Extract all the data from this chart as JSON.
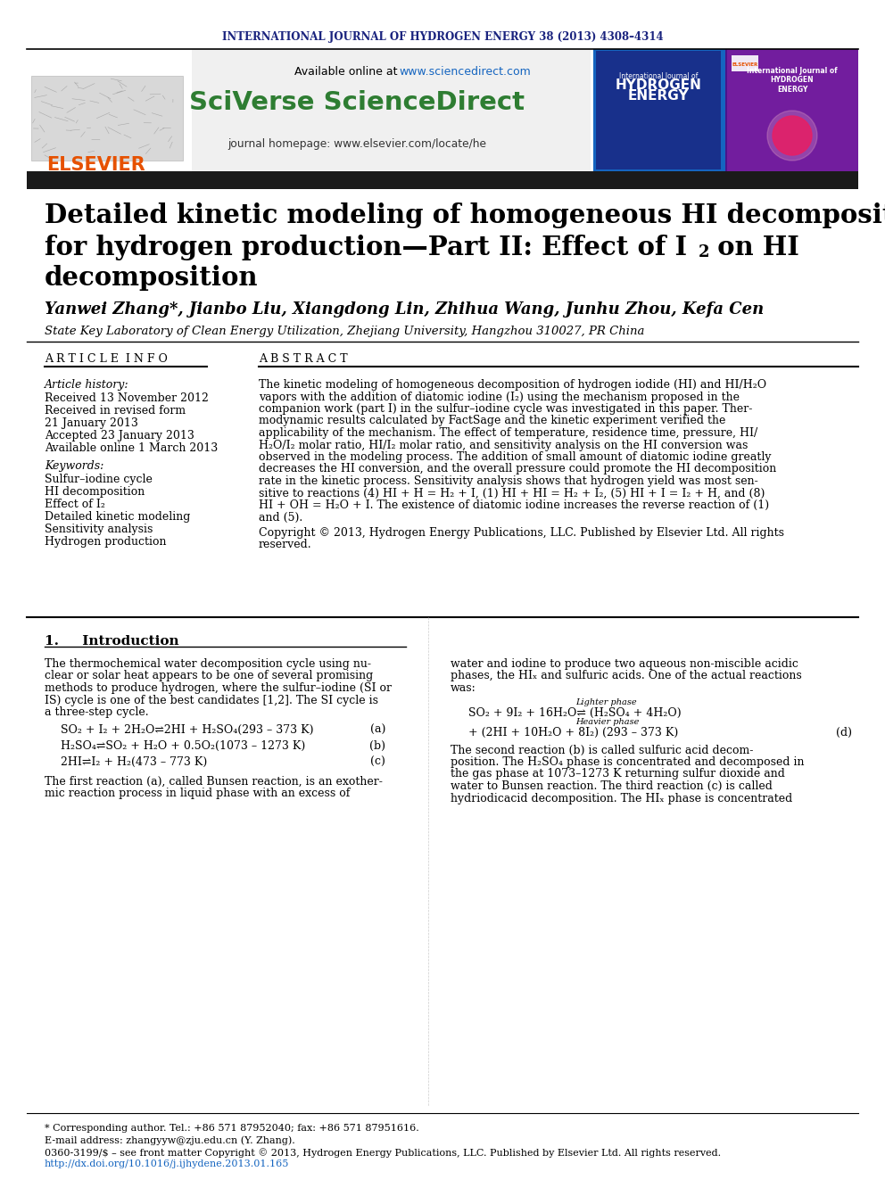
{
  "journal_header": "INTERNATIONAL JOURNAL OF HYDROGEN ENERGY 38 (2013) 4308–4314",
  "available_online": "Available online at ",
  "url_sciencedirect": "www.sciencedirect.com",
  "sciverse_text": "SciVerse ScienceDirect",
  "journal_homepage": "journal homepage: www.elsevier.com/locate/he",
  "elsevier_text": "ELSEVIER",
  "title_line1": "Detailed kinetic modeling of homogeneous HI decomposition",
  "title_line2": "for hydrogen production—Part II: Effect of I",
  "title_line2_sub": "2",
  "title_line2_end": " on HI",
  "title_line3": "decomposition",
  "authors": "Yanwei Zhang*, Jianbo Liu, Xiangdong Lin, Zhihua Wang, Junhu Zhou, Kefa Cen",
  "affiliation": "State Key Laboratory of Clean Energy Utilization, Zhejiang University, Hangzhou 310027, PR China",
  "article_info_label": "A R T I C L E  I N F O",
  "abstract_label": "A B S T R A C T",
  "article_history_label": "Article history:",
  "received1": "Received 13 November 2012",
  "received_revised_label": "Received in revised form",
  "received_revised_date": "21 January 2013",
  "accepted": "Accepted 23 January 2013",
  "available_online2": "Available online 1 March 2013",
  "keywords_label": "Keywords:",
  "keywords": [
    "Sulfur–iodine cycle",
    "HI decomposition",
    "Effect of I₂",
    "Detailed kinetic modeling",
    "Sensitivity analysis",
    "Hydrogen production"
  ],
  "abstract_text": "The kinetic modeling of homogeneous decomposition of hydrogen iodide (HI) and HI/H₂O\nvapors with the addition of diatomic iodine (I₂) using the mechanism proposed in the\ncompanion work (part I) in the sulfur–iodine cycle was investigated in this paper. Ther-\nmodynamic results calculated by FactSage and the kinetic experiment verified the\napplicability of the mechanism. The effect of temperature, residence time, pressure, HI/\nH₂O/I₂ molar ratio, HI/I₂ molar ratio, and sensitivity analysis on the HI conversion was\nobserved in the modeling process. The addition of small amount of diatomic iodine greatly\ndecreases the HI conversion, and the overall pressure could promote the HI decomposition\nrate in the kinetic process. Sensitivity analysis shows that hydrogen yield was most sen-\nsitive to reactions (4) HI + H = H₂ + I, (1) HI + HI = H₂ + I₂, (5) HI + I = I₂ + H, and (8)\nHI + OH = H₂O + I. The existence of diatomic iodine increases the reverse reaction of (1)\nand (5).",
  "copyright": "Copyright © 2013, Hydrogen Energy Publications, LLC. Published by Elsevier Ltd. All rights\nreserved.",
  "section1_title": "1.     Introduction",
  "intro_col1": "The thermochemical water decomposition cycle using nu-\nclear or solar heat appears to be one of several promising\nmethods to produce hydrogen, where the sulfur–iodine (SI or\nIS) cycle is one of the best candidates [1,2]. The SI cycle is\na three-step cycle.",
  "intro_para2_col1": "The first reaction (a), called Bunsen reaction, is an exother-\nmic reaction process in liquid phase with an excess of",
  "intro_col2_para1": "water and iodine to produce two aqueous non-miscible acidic\nphases, the HIₓ and sulfuric acids. One of the actual reactions\nwas:",
  "intro_col2_para2": "The second reaction (b) is called sulfuric acid decom-\nposition. The H₂SO₄ phase is concentrated and decomposed in\nthe gas phase at 1073–1273 K returning sulfur dioxide and\nwater to Bunsen reaction. The third reaction (c) is called\nhydriodicacid decomposition. The HIₓ phase is concentrated",
  "footnote_corresponding": "* Corresponding author. Tel.: +86 571 87952040; fax: +86 571 87951616.",
  "footnote_email": "E-mail address: zhangyyw@zju.edu.cn (Y. Zhang).",
  "footnote_issn": "0360-3199/$ – see front matter Copyright © 2013, Hydrogen Energy Publications, LLC. Published by Elsevier Ltd. All rights reserved.",
  "footnote_doi": "http://dx.doi.org/10.1016/j.ijhydene.2013.01.165",
  "header_color": "#1a237e",
  "sciverse_color": "#2e7d32",
  "elsevier_color": "#e65100",
  "url_color": "#1565c0",
  "title_bar_color": "#1a1a1a",
  "bg_gray": "#f0f0f0",
  "bg_white": "#ffffff",
  "text_black": "#000000"
}
